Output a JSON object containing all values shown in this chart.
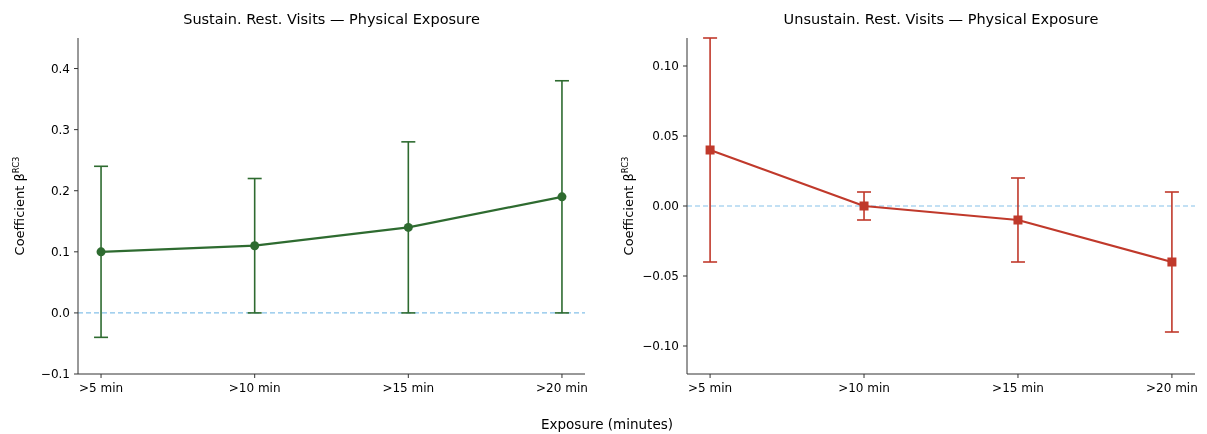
{
  "chart_data": [
    {
      "type": "line",
      "title": "Sustain. Rest. Visits — Physical Exposure",
      "xlabel": "Exposure (minutes)",
      "ylabel": "Coefficient β$^{RC3}$",
      "categories": [
        ">5 min",
        ">10 min",
        ">15 min",
        ">20 min"
      ],
      "series": [
        {
          "color": "#2e6b30",
          "values": [
            0.1,
            0.11,
            0.14,
            0.19
          ],
          "errors": [
            [
              -0.04,
              0.24
            ],
            [
              0,
              0.22
            ],
            [
              0,
              0.28
            ],
            [
              0,
              0.38
            ]
          ]
        }
      ],
      "ylim": [
        -0.1,
        0.45
      ],
      "yticks": [
        {
          "value": -0.1,
          "label": "−0.1"
        },
        {
          "value": 0,
          "label": "0.0"
        },
        {
          "value": 0.1,
          "label": "0.1"
        },
        {
          "value": 0.2,
          "label": "0.2"
        },
        {
          "value": 0.3,
          "label": "0.3"
        },
        {
          "value": 0.4,
          "label": "0.4"
        }
      ],
      "marker": "circle",
      "grid": false,
      "ref_lines": [
        {
          "axis": "y",
          "value": 0,
          "color": "#85c1e9",
          "line_style": "dashed"
        }
      ]
    },
    {
      "type": "line",
      "title": "Unsustain. Rest. Visits — Physical Exposure",
      "ylabel": "Coefficient β$^{RC3}$",
      "categories": [
        ">5 min",
        ">10 min",
        ">15 min",
        ">20 min"
      ],
      "series": [
        {
          "color": "#c0392b",
          "values": [
            0.04,
            0.0,
            -0.01,
            -0.04
          ],
          "errors": [
            [
              -0.04,
              0.12
            ],
            [
              -0.01,
              0.01
            ],
            [
              -0.04,
              0.02
            ],
            [
              -0.09,
              0.01
            ]
          ]
        }
      ],
      "ylim": [
        -0.12,
        0.12
      ],
      "yticks": [
        {
          "value": -0.1,
          "label": "−0.10"
        },
        {
          "value": -0.05,
          "label": "−0.05"
        },
        {
          "value": 0,
          "label": "0.00"
        },
        {
          "value": 0.05,
          "label": "0.05"
        },
        {
          "value": 0.1,
          "label": "0.10"
        }
      ],
      "marker": "square",
      "grid": false,
      "ref_lines": [
        {
          "axis": "y",
          "value": 0,
          "color": "#85c1e9",
          "line_style": "dashed"
        }
      ]
    }
  ]
}
